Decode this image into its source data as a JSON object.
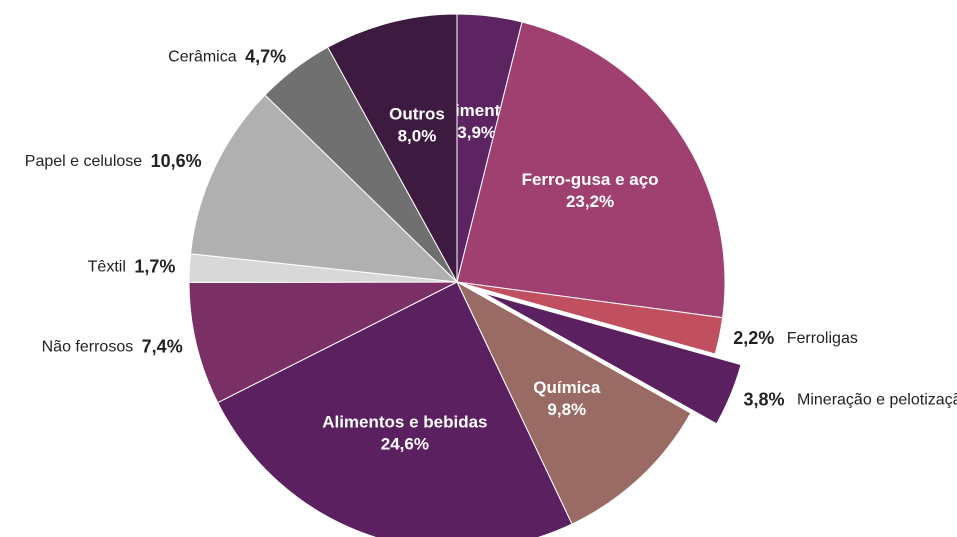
{
  "chart_data": {
    "type": "pie",
    "categories": [
      "Cimento",
      "Ferro-gusa e aço",
      "Ferroligas",
      "Mineração e pelotização",
      "Química",
      "Alimentos e bebidas",
      "Não ferrosos",
      "Têxtil",
      "Papel e celulose",
      "Cerâmica",
      "Outros"
    ],
    "values": [
      3.9,
      23.2,
      2.2,
      3.8,
      9.8,
      24.6,
      7.4,
      1.7,
      10.6,
      4.7,
      8.0
    ],
    "value_labels": [
      "3,9%",
      "23,2%",
      "2,2%",
      "3,8%",
      "9,8%",
      "24,6%",
      "7,4%",
      "1,7%",
      "10,6%",
      "4,7%",
      "8,0%"
    ],
    "colors": [
      "#5c2461",
      "#a04070",
      "#c05060",
      "#5a2060",
      "#9a6a65",
      "#5a2060",
      "#7a3065",
      "#d8d8d8",
      "#b0b0b0",
      "#707070",
      "#3d1a40"
    ]
  }
}
